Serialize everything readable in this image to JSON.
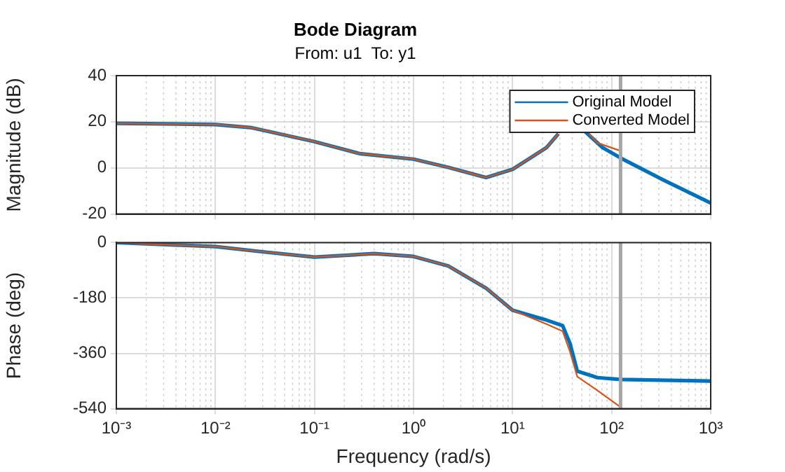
{
  "chart_data": [
    {
      "type": "line",
      "title": "Bode Diagram",
      "subtitle": "From: u1  To: y1",
      "ylabel": "Magnitude (dB)",
      "log": "x",
      "grid": true,
      "legend": "top right",
      "tick_labels": "y",
      "xlim": [
        0.001,
        1000
      ],
      "xticks": [
        {
          "value": 0.001,
          "label": null
        },
        {
          "value": 0.01,
          "label": null
        },
        {
          "value": 0.1,
          "label": null
        },
        {
          "value": 1,
          "label": null
        },
        {
          "value": 10,
          "label": null
        },
        {
          "value": 100,
          "label": null
        },
        {
          "value": 1000,
          "label": null
        }
      ],
      "ylim": [
        -20,
        40
      ],
      "yticks": [
        -20,
        0,
        20,
        40
      ],
      "ref_lines": [
        {
          "axis": "x",
          "value": 123,
          "color": "#a6a6a6"
        }
      ],
      "series": [
        {
          "name": "Original Model",
          "color": "#0072bd",
          "x": [
            0.001,
            0.01,
            0.0234,
            0.1,
            0.285,
            1,
            2.24,
            5.4,
            10,
            22,
            29,
            40,
            52,
            81,
            123,
            331,
            1000
          ],
          "values": [
            19.3,
            18.8,
            17.4,
            11.4,
            6.2,
            3.8,
            0.2,
            -4.2,
            -0.6,
            8.8,
            14.8,
            null,
            16.4,
            8.8,
            4.3,
            -5.2,
            -15.2
          ]
        },
        {
          "name": "Converted Model",
          "color": "#d95319",
          "x": [
            0.001,
            0.01,
            0.0234,
            0.1,
            0.285,
            1,
            2.24,
            5.4,
            10,
            22,
            29,
            40,
            59,
            72,
            123
          ],
          "values": [
            19.3,
            18.8,
            17.4,
            11.4,
            6.2,
            3.8,
            0.2,
            -4.2,
            -0.6,
            8.8,
            14.8,
            null,
            14.8,
            10.8,
            7.4
          ]
        }
      ]
    },
    {
      "type": "line",
      "xlabel": "Frequency (rad/s)",
      "ylabel": "Phase (deg)",
      "log": "x",
      "grid": true,
      "xlim": [
        0.001,
        1000
      ],
      "xticks": [
        {
          "value": 0.001,
          "label": "10⁻³"
        },
        {
          "value": 0.01,
          "label": "10⁻²"
        },
        {
          "value": 0.1,
          "label": "10⁻¹"
        },
        {
          "value": 1,
          "label": "10⁰"
        },
        {
          "value": 10,
          "label": "10¹"
        },
        {
          "value": 100,
          "label": "10²"
        },
        {
          "value": 1000,
          "label": "10³"
        }
      ],
      "ylim": [
        -540,
        0
      ],
      "yticks": [
        -540,
        -360,
        -180,
        0
      ],
      "ref_lines": [
        {
          "axis": "x",
          "value": 123,
          "color": "#a6a6a6"
        }
      ],
      "series": [
        {
          "color": "#0072bd",
          "x": [
            0.001,
            0.01,
            0.032,
            0.1,
            0.4,
            1,
            2.24,
            5.4,
            10,
            22,
            32,
            38,
            45,
            72,
            123,
            1000
          ],
          "values": [
            0,
            -13,
            -31,
            -47,
            -36,
            -45,
            -76,
            -148,
            -220,
            -252,
            -270,
            -328,
            -418,
            -439,
            -445,
            -450
          ]
        },
        {
          "color": "#d95319",
          "x": [
            0.001,
            0.01,
            0.032,
            0.1,
            0.4,
            1,
            2.24,
            5.4,
            10,
            22,
            32,
            38,
            45,
            72,
            123
          ],
          "values": [
            0,
            -13,
            -31,
            -47,
            -36,
            -45,
            -76,
            -148,
            -220,
            -265,
            -288,
            -355,
            -436,
            -481,
            -535
          ]
        }
      ]
    }
  ]
}
